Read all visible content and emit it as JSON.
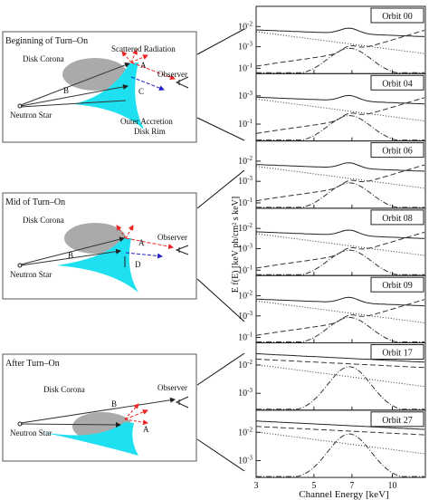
{
  "diagrams": [
    {
      "title": "Beginning of Turn–On",
      "labels": [
        "Scattered Radiation",
        "Disk Corona",
        "Observer",
        "A",
        "B",
        "C",
        "Neutron Star",
        "Outer Accretion",
        "Disk Rim"
      ]
    },
    {
      "title": "Mid of Turn–On",
      "labels": [
        "Disk Corona",
        "Observer",
        "A",
        "B",
        "D",
        "Neutron Star"
      ]
    },
    {
      "title": "After Turn–On",
      "labels": [
        "Disk Corona",
        "Observer",
        "B",
        "A",
        "Neutron Star"
      ]
    }
  ],
  "spectra": {
    "y_axis_title": "E f(E) [keV ph/cm² s keV]",
    "x_axis_title": "Channel Energy [keV]",
    "xticks": [
      3,
      5,
      7,
      10
    ],
    "panels": [
      {
        "label": "Orbit 00",
        "yticks": [
          {
            "base": "10",
            "exp": "-2"
          },
          {
            "base": "10",
            "exp": "-3"
          },
          {
            "base": "10",
            "exp": "-1"
          }
        ]
      },
      {
        "label": "Orbit 04",
        "yticks": [
          {
            "base": "10",
            "exp": "-3"
          },
          {
            "base": "10",
            "exp": "-1"
          }
        ]
      },
      {
        "label": "Orbit 06",
        "yticks": [
          {
            "base": "10",
            "exp": "-2"
          },
          {
            "base": "10",
            "exp": "-3"
          },
          {
            "base": "10",
            "exp": "-1"
          }
        ]
      },
      {
        "label": "Orbit 08",
        "yticks": [
          {
            "base": "10",
            "exp": "-2"
          },
          {
            "base": "10",
            "exp": "-3"
          },
          {
            "base": "10",
            "exp": "-1"
          }
        ]
      },
      {
        "label": "Orbit 09",
        "yticks": [
          {
            "base": "10",
            "exp": "-2"
          },
          {
            "base": "10",
            "exp": "-3"
          },
          {
            "base": "10",
            "exp": "-1"
          }
        ]
      },
      {
        "label": "Orbit 17",
        "yticks": [
          {
            "base": "10",
            "exp": "-2"
          },
          {
            "base": "10",
            "exp": "-3"
          }
        ]
      },
      {
        "label": "Orbit 27",
        "yticks": [
          {
            "base": "10",
            "exp": "-2"
          },
          {
            "base": "10",
            "exp": "-3"
          }
        ]
      }
    ]
  }
}
